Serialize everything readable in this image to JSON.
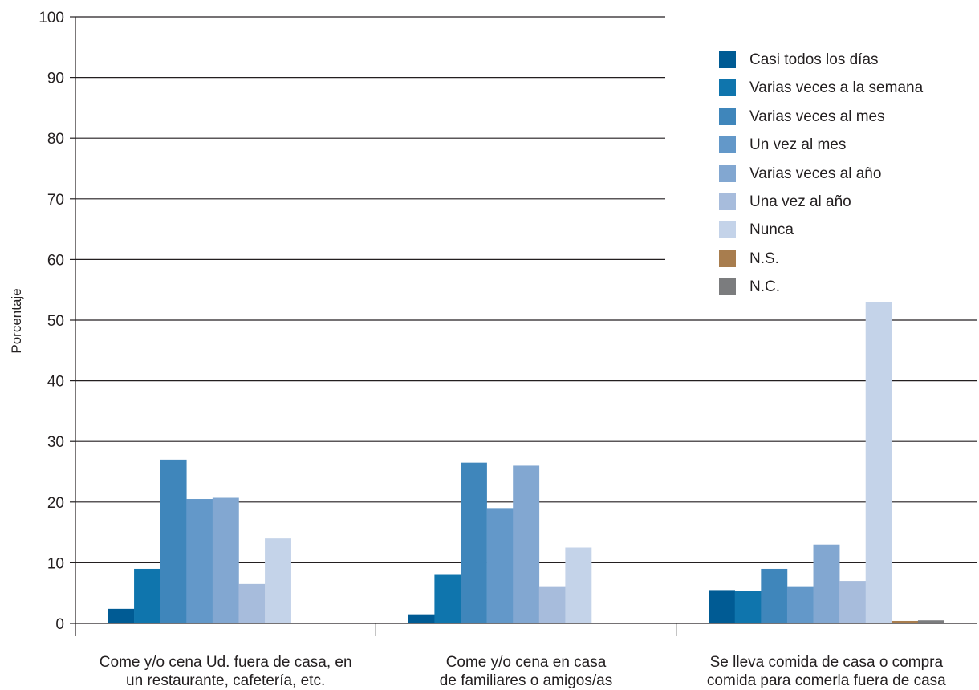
{
  "chart_data": {
    "type": "bar",
    "title": "",
    "ylabel": "Porcentaje",
    "xlabel": "",
    "ylim": [
      0,
      100
    ],
    "yticks": [
      0,
      10,
      20,
      30,
      40,
      50,
      60,
      70,
      80,
      90,
      100
    ],
    "grid": "horizontal",
    "legend_position": "top-right",
    "categories": [
      [
        "Come y/o cena Ud. fuera de casa, en",
        "un restaurante, cafetería, etc."
      ],
      [
        "Come y/o cena en casa",
        "de familiares o amigos/as"
      ],
      [
        "Se lleva comida de casa o compra",
        "comida para comerla fuera de casa"
      ]
    ],
    "series": [
      {
        "name": "Casi todos los días",
        "color": "#005b94",
        "values": [
          2.4,
          1.5,
          5.5
        ]
      },
      {
        "name": "Varias veces a la semana",
        "color": "#0f75ad",
        "values": [
          9.0,
          8.0,
          5.3
        ]
      },
      {
        "name": "Varias veces al mes",
        "color": "#3f86bb",
        "values": [
          27.0,
          26.5,
          9.0
        ]
      },
      {
        "name": "Un vez al mes",
        "color": "#6398c9",
        "values": [
          20.5,
          19.0,
          6.0
        ]
      },
      {
        "name": "Varias veces al año",
        "color": "#82a7d1",
        "values": [
          20.7,
          26.0,
          13.0
        ]
      },
      {
        "name": "Una vez al año",
        "color": "#a7bcdc",
        "values": [
          6.5,
          6.0,
          7.0
        ]
      },
      {
        "name": "Nunca",
        "color": "#c4d3e9",
        "values": [
          14.0,
          12.5,
          53.0
        ]
      },
      {
        "name": "N.S.",
        "color": "#a87d4e",
        "values": [
          0.1,
          0.1,
          0.4
        ]
      },
      {
        "name": "N.C.",
        "color": "#7b7c7e",
        "values": [
          0.0,
          0.1,
          0.5
        ]
      }
    ]
  }
}
